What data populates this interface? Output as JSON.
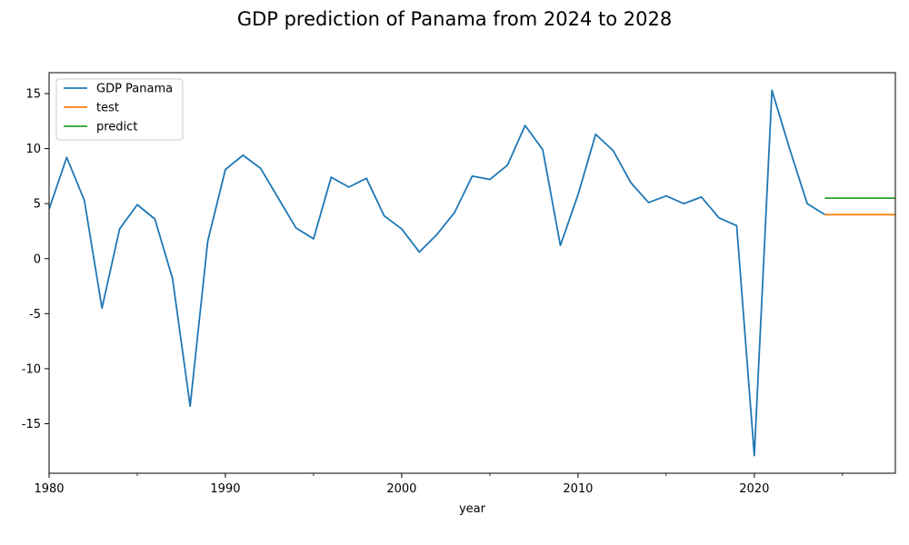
{
  "chart_data": {
    "type": "line",
    "title": "GDP prediction of Panama from 2024 to 2028",
    "xlabel": "year",
    "ylabel": "",
    "xlim": [
      1980,
      2028
    ],
    "ylim": [
      -19.5,
      16.9
    ],
    "x_ticks": [
      1980,
      1990,
      2000,
      2010,
      2020
    ],
    "x_minor_ticks": [
      1985,
      1995,
      2005,
      2015,
      2025
    ],
    "y_ticks": [
      -15,
      -10,
      -5,
      0,
      5,
      10,
      15
    ],
    "legend_position": "top-left",
    "grid": false,
    "series": [
      {
        "name": "GDP Panama",
        "color": "#1f77b4",
        "x": [
          1980,
          1981,
          1982,
          1983,
          1984,
          1985,
          1986,
          1987,
          1988,
          1989,
          1990,
          1991,
          1992,
          1993,
          1994,
          1995,
          1996,
          1997,
          1998,
          1999,
          2000,
          2001,
          2002,
          2003,
          2004,
          2005,
          2006,
          2007,
          2008,
          2009,
          2010,
          2011,
          2012,
          2013,
          2014,
          2015,
          2016,
          2017,
          2018,
          2019,
          2020,
          2021,
          2022,
          2023,
          2024
        ],
        "y": [
          4.5,
          9.2,
          5.3,
          -4.5,
          2.7,
          4.9,
          3.6,
          -1.8,
          -13.4,
          1.6,
          8.1,
          9.4,
          8.2,
          5.5,
          2.8,
          1.8,
          7.4,
          6.5,
          7.3,
          3.9,
          2.7,
          0.6,
          2.2,
          4.2,
          7.5,
          7.2,
          8.5,
          12.1,
          9.9,
          1.2,
          5.8,
          11.3,
          9.8,
          6.9,
          5.1,
          5.7,
          5.0,
          5.6,
          3.7,
          3.0,
          -17.9,
          15.3,
          10.0,
          5.0,
          4.0
        ]
      },
      {
        "name": "test",
        "color": "#ff7f0e",
        "x": [
          2024,
          2025,
          2026,
          2027,
          2028
        ],
        "y": [
          4.0,
          4.0,
          4.0,
          4.0,
          4.0
        ]
      },
      {
        "name": "predict",
        "color": "#2ca02c",
        "x": [
          2024,
          2025,
          2026,
          2027,
          2028
        ],
        "y": [
          5.5,
          5.5,
          5.5,
          5.5,
          5.5
        ]
      }
    ]
  }
}
